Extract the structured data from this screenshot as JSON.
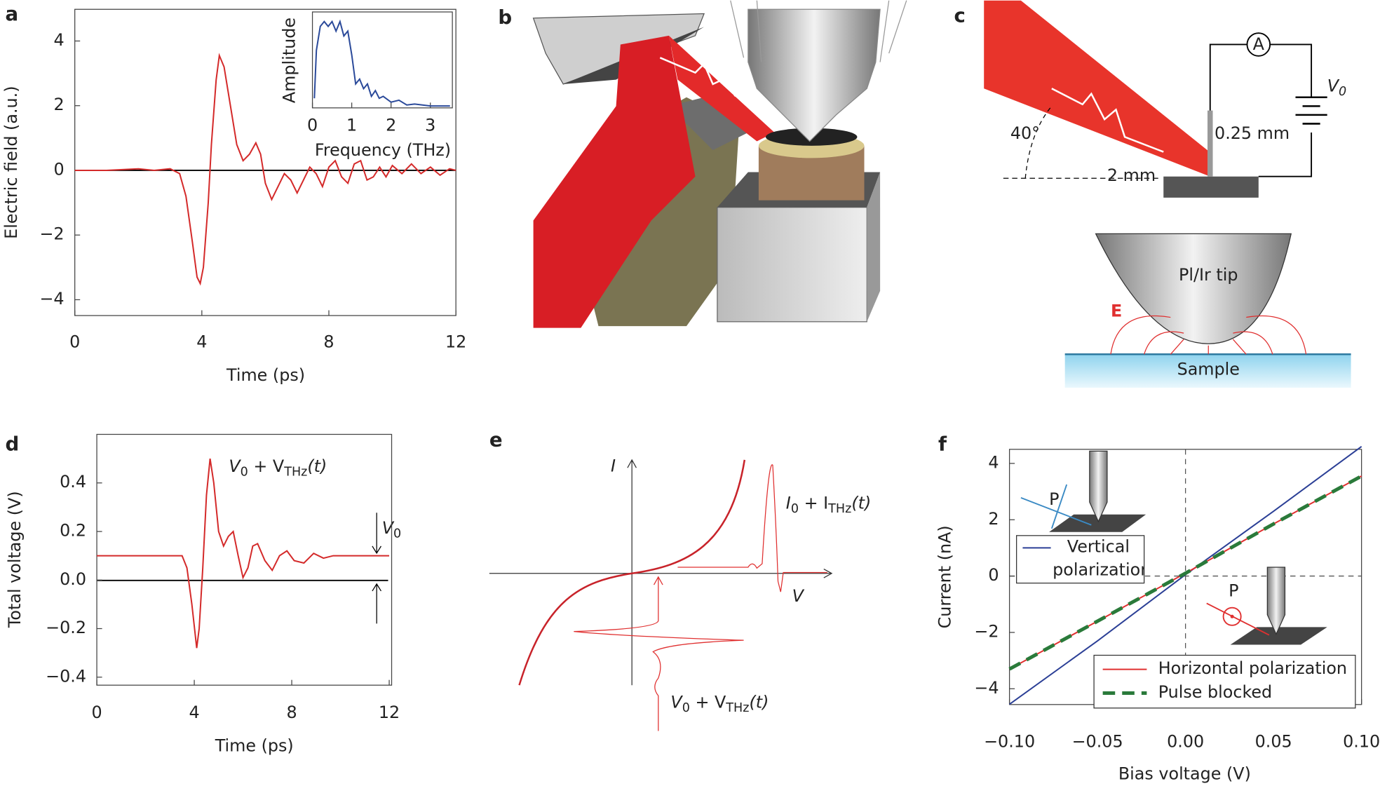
{
  "panel_labels": [
    "a",
    "b",
    "c",
    "d",
    "e",
    "f"
  ],
  "chart_data": [
    {
      "type": "line",
      "x_label": "Time (ps)",
      "y_label": "Electric field (a.u.)",
      "color": "#d42a2a",
      "x": [
        0,
        1,
        2,
        2.5,
        3,
        3.3,
        3.5,
        3.7,
        3.85,
        3.95,
        4.05,
        4.2,
        4.3,
        4.45,
        4.55,
        4.7,
        4.9,
        5.1,
        5.3,
        5.5,
        5.7,
        5.85,
        6.0,
        6.2,
        6.4,
        6.6,
        6.8,
        7.0,
        7.2,
        7.4,
        7.6,
        7.8,
        8.0,
        8.2,
        8.4,
        8.6,
        8.8,
        9.0,
        9.2,
        9.4,
        9.6,
        9.8,
        10.0,
        10.3,
        10.6,
        10.9,
        11.2,
        11.5,
        11.8,
        12
      ],
      "values": [
        0,
        0,
        0.05,
        0,
        0.05,
        -0.1,
        -0.8,
        -2.2,
        -3.3,
        -3.5,
        -3.0,
        -1.0,
        0.8,
        2.8,
        3.55,
        3.2,
        2.0,
        0.8,
        0.3,
        0.5,
        0.85,
        0.5,
        -0.4,
        -0.9,
        -0.5,
        -0.1,
        -0.3,
        -0.7,
        -0.3,
        0.1,
        -0.1,
        -0.5,
        0.1,
        0.3,
        -0.2,
        -0.4,
        0.2,
        0.3,
        -0.3,
        -0.2,
        0.1,
        -0.2,
        0.15,
        -0.1,
        0.2,
        -0.1,
        0.1,
        -0.15,
        0.05,
        0
      ],
      "xlim": [
        0,
        12
      ],
      "xticks": [
        0,
        4,
        8,
        12
      ],
      "ylim": [
        -4.49,
        4.98
      ],
      "yticks": [
        {
          "value": -4,
          "label": "−4"
        },
        {
          "value": -2,
          "label": "−2"
        },
        0,
        2,
        4
      ]
    },
    {
      "type": "line",
      "x_label": "Frequency (THz)",
      "y_label": "Amplitude",
      "color": "#2b4a9a",
      "x": [
        0.05,
        0.1,
        0.2,
        0.3,
        0.4,
        0.5,
        0.6,
        0.7,
        0.8,
        0.9,
        1.0,
        1.1,
        1.2,
        1.3,
        1.4,
        1.5,
        1.6,
        1.7,
        1.8,
        2.0,
        2.2,
        2.4,
        2.6,
        3.0,
        3.5
      ],
      "values": [
        0.1,
        0.6,
        0.85,
        0.9,
        0.85,
        0.9,
        0.8,
        0.9,
        0.75,
        0.8,
        0.55,
        0.25,
        0.3,
        0.2,
        0.25,
        0.12,
        0.18,
        0.1,
        0.12,
        0.06,
        0.08,
        0.03,
        0.04,
        0.02,
        0.02
      ],
      "xlim": [
        0,
        3.56
      ],
      "xticks": [
        0,
        1,
        2,
        3
      ],
      "ylim": [
        0,
        1
      ],
      "yticks": []
    },
    {
      "type": "line",
      "x_label": "Time (ps)",
      "y_label": "Total voltage (V)",
      "color": "#d42a2a",
      "x": [
        0,
        3.5,
        3.7,
        3.9,
        4.1,
        4.2,
        4.35,
        4.5,
        4.65,
        4.8,
        5.0,
        5.2,
        5.4,
        5.6,
        5.8,
        6.0,
        6.2,
        6.4,
        6.6,
        6.9,
        7.2,
        7.5,
        7.8,
        8.1,
        8.5,
        8.9,
        9.3,
        9.7,
        12
      ],
      "values": [
        0.1,
        0.1,
        0.05,
        -0.1,
        -0.28,
        -0.2,
        0.05,
        0.35,
        0.5,
        0.4,
        0.2,
        0.14,
        0.18,
        0.2,
        0.1,
        0.01,
        0.05,
        0.14,
        0.15,
        0.08,
        0.04,
        0.1,
        0.12,
        0.08,
        0.07,
        0.11,
        0.09,
        0.1,
        0.1
      ],
      "xlim": [
        0,
        12.1
      ],
      "xticks": [
        0,
        4,
        8,
        12
      ],
      "ylim": [
        -0.433,
        0.6
      ],
      "yticks": [
        {
          "value": -0.4,
          "label": "−0.4"
        },
        {
          "value": -0.2,
          "label": "−0.2"
        },
        {
          "value": 0,
          "label": "0.0"
        },
        0.2,
        0.4
      ],
      "annotations": [
        {
          "parts": [
            "V",
            "0",
            " + V",
            "THz",
            "(t)"
          ]
        },
        {
          "parts": [
            "V",
            "0"
          ]
        }
      ]
    },
    {
      "type": "line",
      "x_label": "Bias voltage (V)",
      "y_label": "Current (nA)",
      "x": [
        -0.1,
        -0.05,
        0,
        0.05,
        0.1
      ],
      "series": [
        {
          "name": "Vertical polarization",
          "color": "#2b3f96",
          "style": "solid",
          "values": [
            -4.55,
            -2.3,
            0.05,
            2.3,
            4.6
          ]
        },
        {
          "name": "Horizontal polarization",
          "color": "#e03030",
          "style": "solid",
          "values": [
            -3.3,
            -1.6,
            0.1,
            1.85,
            3.55
          ]
        },
        {
          "name": "Pulse blocked",
          "color": "#2a7a3a",
          "style": "dashed",
          "values": [
            -3.3,
            -1.6,
            0.1,
            1.85,
            3.55
          ]
        }
      ],
      "xlim": [
        -0.1,
        0.1
      ],
      "xticks": [
        {
          "value": -0.1,
          "label": "−0.10"
        },
        {
          "value": -0.05,
          "label": "−0.05"
        },
        {
          "value": 0,
          "label": "0.00"
        },
        0.05,
        {
          "value": 0.1,
          "label": "0.10"
        }
      ],
      "ylim": [
        -4.56,
        4.5
      ],
      "yticks": [
        {
          "value": -4,
          "label": "−4"
        },
        {
          "value": -2,
          "label": "−2"
        },
        0,
        2,
        4
      ],
      "icon_labels": [
        "P",
        "P"
      ]
    }
  ],
  "diagram_c": {
    "angle": "40°",
    "distance": "2 mm",
    "tip_gap": "0.25 mm",
    "ammeter": "A",
    "voltage": [
      "V",
      "0"
    ],
    "tip": "Pl/Ir tip",
    "field": "E",
    "sample": "Sample"
  },
  "diagram_e": {
    "i_axis": "I",
    "v_axis": "V",
    "current": [
      "I",
      "0",
      " + I",
      "THz",
      "(t)"
    ],
    "voltage": [
      "V",
      "0",
      " + V",
      "THz",
      "(t)"
    ]
  }
}
